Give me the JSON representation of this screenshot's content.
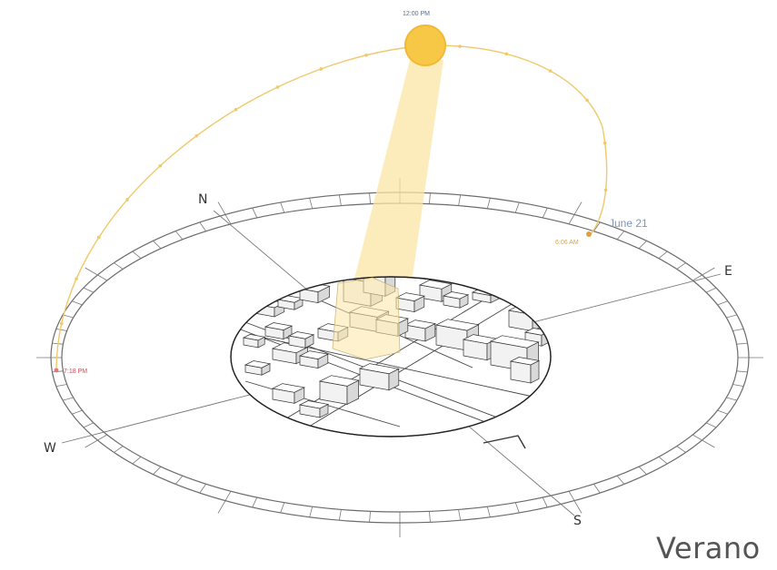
{
  "directions": {
    "north": "N",
    "east": "E",
    "south": "S",
    "west": "W"
  },
  "sun_path": {
    "noon_time": "12:00 PM",
    "sunrise_time": "6:06 AM",
    "sunset_time": "7:18 PM",
    "date": "June 21"
  },
  "season_label": "Verano",
  "colors": {
    "sun": "#f7c846",
    "sun_path": "#efc96a",
    "sun_ray": "#fbe6a6",
    "ring": "#6b6b6b",
    "sunset_label": "#c0505a",
    "date_label": "#7f95b4"
  }
}
